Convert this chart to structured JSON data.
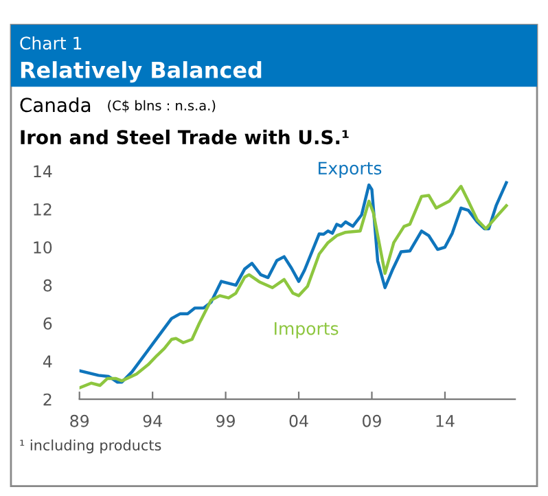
{
  "chart_data": {
    "type": "line",
    "title": "Relatively Balanced",
    "subtitle": "Iron and Steel Trade with U.S.¹",
    "annotations": [
      "Chart 1",
      "Canada",
      "(C$ blns : n.s.a.)",
      "¹ including products"
    ],
    "xlim": [
      1989,
      2018.8
    ],
    "ylim": [
      2,
      14
    ],
    "xticks": [
      {
        "value": 1989,
        "label": "89"
      },
      {
        "value": 1994,
        "label": "94"
      },
      {
        "value": 1999,
        "label": "99"
      },
      {
        "value": 2004,
        "label": "04"
      },
      {
        "value": 2009,
        "label": "09"
      },
      {
        "value": 2014,
        "label": "14"
      }
    ],
    "yticks": [
      2,
      4,
      6,
      8,
      10,
      12,
      14
    ],
    "grid": false,
    "legend": false,
    "series": [
      {
        "name": "Exports",
        "color": "#0f75bc",
        "x": [
          1989,
          1990.3,
          1991,
          1991.6,
          1991.9,
          1992.6,
          1994,
          1995.3,
          1995.9,
          1996.4,
          1996.9,
          1997.5,
          1998,
          1998.7,
          1999.2,
          1999.7,
          2000.3,
          2000.8,
          2001.4,
          2001.9,
          2002.5,
          2003,
          2003.5,
          2004,
          2004.4,
          2005.4,
          2005.7,
          2006,
          2006.3,
          2006.6,
          2006.9,
          2007.2,
          2007.7,
          2008.3,
          2008.8,
          2009,
          2009.4,
          2009.9,
          2010.4,
          2011,
          2011.6,
          2012.4,
          2012.9,
          2013.5,
          2014,
          2014.5,
          2015.1,
          2015.6,
          2016.2,
          2016.7,
          2017,
          2017.5,
          2018.2
        ],
        "values": [
          3.5,
          3.26,
          3.2,
          2.9,
          2.9,
          3.45,
          4.9,
          6.25,
          6.5,
          6.5,
          6.8,
          6.8,
          7.1,
          8.2,
          8.1,
          8.0,
          8.85,
          9.15,
          8.55,
          8.4,
          9.3,
          9.5,
          8.9,
          8.2,
          8.8,
          10.7,
          10.68,
          10.85,
          10.73,
          11.2,
          11.1,
          11.33,
          11.1,
          11.7,
          13.27,
          13.03,
          9.27,
          7.87,
          8.79,
          9.76,
          9.8,
          10.85,
          10.6,
          9.88,
          10.0,
          10.73,
          12.06,
          11.94,
          11.33,
          10.97,
          10.97,
          12.18,
          13.39
        ]
      },
      {
        "name": "Imports",
        "color": "#8dc63f",
        "x": [
          1989,
          1989.8,
          1990.4,
          1990.9,
          1991.5,
          1991.9,
          1992.9,
          1993.7,
          1994.3,
          1994.8,
          1995.3,
          1995.6,
          1996.1,
          1996.7,
          1997.2,
          1998,
          1998.6,
          1999.2,
          1999.7,
          2000.3,
          2000.6,
          2001.3,
          2002.2,
          2003,
          2003.6,
          2004,
          2004.6,
          2005.4,
          2006,
          2006.6,
          2007.2,
          2008.2,
          2008.8,
          2009.1,
          2009.9,
          2010.5,
          2011.2,
          2011.6,
          2012.4,
          2012.9,
          2013.4,
          2014.3,
          2015.1,
          2015.6,
          2016.2,
          2016.8,
          2017.5,
          2018.2
        ],
        "values": [
          2.6,
          2.85,
          2.73,
          3.09,
          3.09,
          2.97,
          3.33,
          3.82,
          4.3,
          4.67,
          5.15,
          5.2,
          4.98,
          5.15,
          6.0,
          7.21,
          7.45,
          7.33,
          7.58,
          8.42,
          8.55,
          8.18,
          7.87,
          8.3,
          7.58,
          7.45,
          7.94,
          9.64,
          10.24,
          10.61,
          10.78,
          10.85,
          12.42,
          11.82,
          8.62,
          10.24,
          11.09,
          11.21,
          12.67,
          12.72,
          12.06,
          12.42,
          13.2,
          12.42,
          11.45,
          10.97,
          11.58,
          12.18
        ]
      }
    ]
  }
}
